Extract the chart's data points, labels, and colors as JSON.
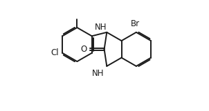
{
  "bg_color": "#ffffff",
  "line_color": "#1a1a1a",
  "line_width": 1.4,
  "font_size": 8.5,
  "figsize": [
    3.02,
    1.61
  ],
  "dpi": 100,
  "xlim": [
    -0.55,
    1.65
  ],
  "ylim": [
    -0.72,
    1.05
  ]
}
